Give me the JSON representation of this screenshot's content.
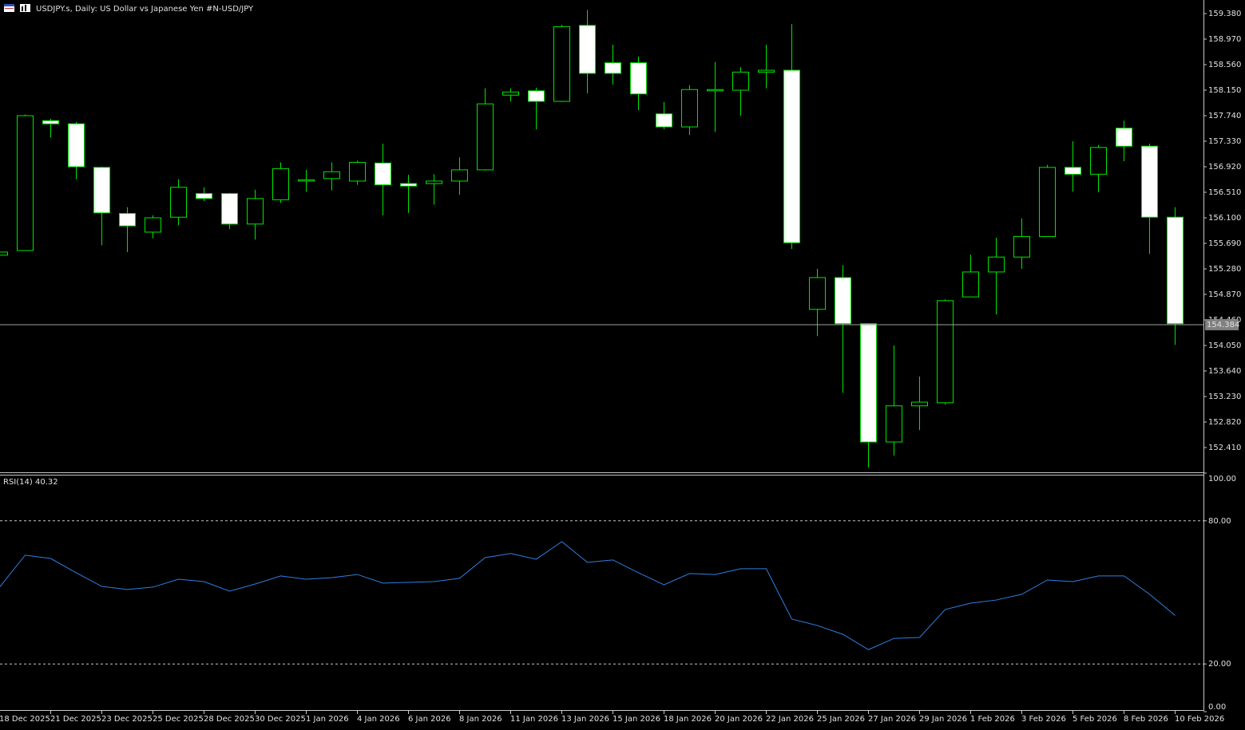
{
  "chart_data": [
    {
      "type": "candlestick",
      "title": "USDJPY.s, Daily:  US Dollar vs  Japanese Yen #N-USD/JPY",
      "categories": [
        "18 Dec 2025",
        null,
        "21 Dec 2025",
        null,
        "23 Dec 2025",
        null,
        "25 Dec 2025",
        null,
        "28 Dec 2025",
        null,
        "30 Dec 2025",
        null,
        "1 Jan 2026",
        null,
        "4 Jan 2026",
        null,
        "6 Jan 2026",
        null,
        "8 Jan 2026",
        null,
        "11 Jan 2026",
        null,
        "13 Jan 2026",
        null,
        "15 Jan 2026",
        null,
        "18 Jan 2026",
        null,
        "20 Jan 2026",
        null,
        "22 Jan 2026",
        null,
        "25 Jan 2026",
        null,
        "27 Jan 2026",
        null,
        "29 Jan 2026",
        null,
        "1 Feb 2026",
        null,
        "3 Feb 2026",
        null,
        "5 Feb 2026",
        null,
        "8 Feb 2026",
        null,
        "10 Feb 2026"
      ],
      "open": [
        155.5,
        155.575,
        157.66,
        157.61,
        156.91,
        156.17,
        155.87,
        156.11,
        156.49,
        156.49,
        156.0,
        156.39,
        156.69,
        156.73,
        156.69,
        156.98,
        156.65,
        156.65,
        156.69,
        156.87,
        158.07,
        158.14,
        157.97,
        159.19,
        158.59,
        158.59,
        157.77,
        157.56,
        158.14,
        158.15,
        158.44,
        158.47,
        154.63,
        155.14,
        154.4,
        152.5,
        153.08,
        153.13,
        154.83,
        155.23,
        155.47,
        155.8,
        156.91,
        156.8,
        157.54,
        157.25,
        156.11
      ],
      "high": [
        155.57,
        157.76,
        157.69,
        157.64,
        156.92,
        156.27,
        156.14,
        156.72,
        156.59,
        156.5,
        156.55,
        156.99,
        156.87,
        156.99,
        157.02,
        157.29,
        156.79,
        156.8,
        157.07,
        158.18,
        158.18,
        158.19,
        159.2,
        159.44,
        158.88,
        158.69,
        157.96,
        158.23,
        158.6,
        158.52,
        158.88,
        159.21,
        155.28,
        155.34,
        154.41,
        154.05,
        153.55,
        154.79,
        155.51,
        155.78,
        156.09,
        156.95,
        157.33,
        157.27,
        157.66,
        157.29,
        156.27
      ],
      "low": [
        155.47,
        155.57,
        157.39,
        156.72,
        155.66,
        155.55,
        155.77,
        155.98,
        156.37,
        155.92,
        155.75,
        156.34,
        156.52,
        156.54,
        156.63,
        156.14,
        156.18,
        156.31,
        156.47,
        156.86,
        157.97,
        157.52,
        157.96,
        158.1,
        158.24,
        157.83,
        157.52,
        157.43,
        157.48,
        157.74,
        158.18,
        155.6,
        154.2,
        153.29,
        152.09,
        152.28,
        152.69,
        153.1,
        154.83,
        154.55,
        155.28,
        155.8,
        156.52,
        156.51,
        157.01,
        155.52,
        154.06
      ],
      "close": [
        155.55,
        157.74,
        157.61,
        156.92,
        156.18,
        155.97,
        156.1,
        156.59,
        156.41,
        156.0,
        156.41,
        156.89,
        156.71,
        156.84,
        156.99,
        156.63,
        156.61,
        156.69,
        156.87,
        157.93,
        158.12,
        157.97,
        159.17,
        158.42,
        158.42,
        158.09,
        157.56,
        158.16,
        158.16,
        158.44,
        158.47,
        155.7,
        155.14,
        154.4,
        152.5,
        153.08,
        153.14,
        154.77,
        155.23,
        155.47,
        155.8,
        156.91,
        156.8,
        157.23,
        157.25,
        156.11,
        154.4
      ],
      "last_price": 154.384,
      "colors": {
        "outline": "#00e600",
        "up_fill": "#000000",
        "down_fill": "#ffffff",
        "last_line": "#a0a0a0"
      },
      "ylim": [
        152.013,
        159.598
      ],
      "yticks": [
        {
          "value": 159.38,
          "label": "159.380"
        },
        {
          "value": 158.97,
          "label": "158.970"
        },
        {
          "value": 158.56,
          "label": "158.560"
        },
        {
          "value": 158.15,
          "label": "158.150"
        },
        {
          "value": 157.74,
          "label": "157.740"
        },
        {
          "value": 157.33,
          "label": "157.330"
        },
        {
          "value": 156.92,
          "label": "156.920"
        },
        {
          "value": 156.51,
          "label": "156.510"
        },
        {
          "value": 156.1,
          "label": "156.100"
        },
        {
          "value": 155.69,
          "label": "155.690"
        },
        {
          "value": 155.28,
          "label": "155.280"
        },
        {
          "value": 154.87,
          "label": "154.870"
        },
        {
          "value": 154.46,
          "label": "154.460"
        },
        {
          "value": 154.05,
          "label": "154.050"
        },
        {
          "value": 153.64,
          "label": "153.640"
        },
        {
          "value": 153.23,
          "label": "153.230"
        },
        {
          "value": 152.82,
          "label": "152.820"
        },
        {
          "value": 152.41,
          "label": "152.410"
        }
      ]
    },
    {
      "type": "line",
      "title": "RSI(14) 40.32",
      "color": "#2f7fe0",
      "values": [
        52.2,
        65.6,
        64.2,
        58.2,
        52.5,
        51.2,
        52.2,
        55.5,
        54.5,
        50.5,
        53.5,
        56.9,
        55.5,
        56.2,
        57.5,
        53.9,
        54.2,
        54.5,
        55.9,
        64.6,
        66.3,
        63.9,
        71.3,
        62.6,
        63.6,
        58.2,
        53.2,
        57.9,
        57.5,
        59.9,
        59.9,
        38.8,
        36.1,
        32.4,
        26.0,
        30.7,
        31.1,
        42.8,
        45.5,
        46.8,
        49.2,
        55.2,
        54.5,
        56.9,
        56.9,
        49.2,
        40.32
      ],
      "ylim": [
        0,
        100
      ],
      "yticks": [
        {
          "value": 100,
          "label": "100.00"
        },
        {
          "value": 80,
          "label": "80.00"
        },
        {
          "value": 20,
          "label": "20.00"
        },
        {
          "value": 0,
          "label": "0.00"
        }
      ],
      "levels": [
        80,
        20
      ]
    }
  ]
}
